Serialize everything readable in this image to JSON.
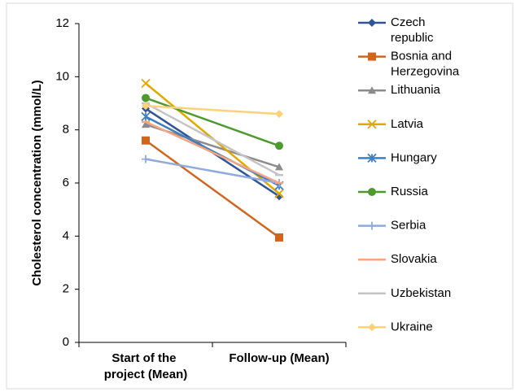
{
  "chart_data": {
    "type": "line",
    "y_label": "Cholesterol concentration (mmol/L)",
    "categories": [
      "Start of the project (Mean)",
      "Follow-up (Mean)"
    ],
    "ylim": [
      0,
      12
    ],
    "yticks": [
      0,
      2,
      4,
      6,
      8,
      10,
      12
    ],
    "grid": false,
    "legend": "right",
    "series": [
      {
        "name": "Czech republic",
        "color": "#2f5597",
        "marker": "diamond",
        "values": [
          8.8,
          5.5
        ]
      },
      {
        "name": "Bosnia and Herzegovina",
        "color": "#d0661e",
        "marker": "square",
        "values": [
          7.6,
          3.95
        ]
      },
      {
        "name": "Lithuania",
        "color": "#8c8c8c",
        "marker": "triangle",
        "values": [
          8.2,
          6.6
        ]
      },
      {
        "name": "Latvia",
        "color": "#e0a800",
        "marker": "x",
        "values": [
          9.75,
          5.6
        ]
      },
      {
        "name": "Hungary",
        "color": "#3f7fbf",
        "marker": "star",
        "values": [
          8.5,
          5.9
        ]
      },
      {
        "name": "Russia",
        "color": "#4e9a2e",
        "marker": "circle",
        "values": [
          9.2,
          7.4
        ]
      },
      {
        "name": "Serbia",
        "color": "#8faadc",
        "marker": "plus",
        "values": [
          6.9,
          6.0
        ]
      },
      {
        "name": "Slovakia",
        "color": "#f4a582",
        "marker": "dash",
        "values": [
          8.3,
          6.0
        ]
      },
      {
        "name": "Uzbekistan",
        "color": "#c4c4c4",
        "marker": "dash",
        "values": [
          9.0,
          6.3
        ]
      },
      {
        "name": "Ukraine",
        "color": "#ffd27a",
        "marker": "diamond",
        "values": [
          8.9,
          8.6
        ]
      }
    ]
  }
}
